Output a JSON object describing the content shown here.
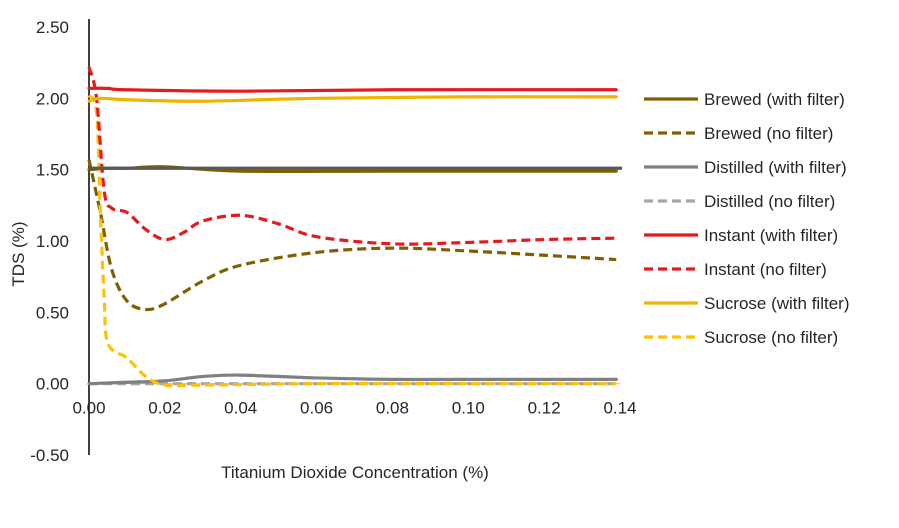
{
  "chart_data": {
    "type": "line",
    "title": "",
    "xlabel": "Titanium Dioxide Concentration (%)",
    "ylabel": "TDS (%)",
    "xlim": [
      0,
      0.14
    ],
    "ylim": [
      -0.5,
      2.5
    ],
    "x_ticks": [
      "0.00",
      "0.02",
      "0.04",
      "0.06",
      "0.08",
      "0.10",
      "0.12",
      "0.14"
    ],
    "y_ticks": [
      "-0.50",
      "0.00",
      "0.50",
      "1.00",
      "1.50",
      "2.00",
      "2.50"
    ],
    "grid": false,
    "legend_position": "right",
    "series": [
      {
        "name": "Brewed (with filter)",
        "color": "#7F6000",
        "dash": "solid",
        "points": [
          [
            0,
            1.5
          ],
          [
            0.005,
            1.51
          ],
          [
            0.01,
            1.51
          ],
          [
            0.02,
            1.52
          ],
          [
            0.04,
            1.49
          ],
          [
            0.08,
            1.49
          ],
          [
            0.139,
            1.49
          ]
        ]
      },
      {
        "name": "Brewed (no filter)",
        "color": "#7F6000",
        "dash": "dashed",
        "points": [
          [
            0,
            1.57
          ],
          [
            0.003,
            1.2
          ],
          [
            0.006,
            0.8
          ],
          [
            0.01,
            0.58
          ],
          [
            0.015,
            0.52
          ],
          [
            0.02,
            0.56
          ],
          [
            0.03,
            0.72
          ],
          [
            0.04,
            0.83
          ],
          [
            0.06,
            0.92
          ],
          [
            0.08,
            0.95
          ],
          [
            0.1,
            0.93
          ],
          [
            0.12,
            0.9
          ],
          [
            0.139,
            0.87
          ]
        ]
      },
      {
        "name": "Distilled (with filter)",
        "color": "#808080",
        "dash": "solid",
        "points": [
          [
            0,
            0.0
          ],
          [
            0.01,
            0.01
          ],
          [
            0.02,
            0.02
          ],
          [
            0.03,
            0.05
          ],
          [
            0.04,
            0.06
          ],
          [
            0.06,
            0.04
          ],
          [
            0.08,
            0.03
          ],
          [
            0.1,
            0.03
          ],
          [
            0.139,
            0.03
          ]
        ]
      },
      {
        "name": "Distilled (no filter)",
        "color": "#A6A6A6",
        "dash": "dashed",
        "points": [
          [
            0,
            0.0
          ],
          [
            0.02,
            0.0
          ],
          [
            0.04,
            0.0
          ],
          [
            0.06,
            0.0
          ],
          [
            0.08,
            0.0
          ],
          [
            0.1,
            0.0
          ],
          [
            0.139,
            0.0
          ]
        ]
      },
      {
        "name": "Instant (with filter)",
        "color": "#E41A1C",
        "dash": "solid",
        "points": [
          [
            0,
            2.07
          ],
          [
            0.005,
            2.07
          ],
          [
            0.01,
            2.06
          ],
          [
            0.04,
            2.05
          ],
          [
            0.08,
            2.06
          ],
          [
            0.139,
            2.06
          ]
        ]
      },
      {
        "name": "Instant (no filter)",
        "color": "#E41A1C",
        "dash": "dashed",
        "points": [
          [
            0,
            2.22
          ],
          [
            0.002,
            2.0
          ],
          [
            0.004,
            1.35
          ],
          [
            0.006,
            1.23
          ],
          [
            0.01,
            1.2
          ],
          [
            0.015,
            1.08
          ],
          [
            0.02,
            1.01
          ],
          [
            0.025,
            1.06
          ],
          [
            0.03,
            1.14
          ],
          [
            0.04,
            1.18
          ],
          [
            0.05,
            1.12
          ],
          [
            0.06,
            1.03
          ],
          [
            0.08,
            0.98
          ],
          [
            0.1,
            0.99
          ],
          [
            0.12,
            1.01
          ],
          [
            0.139,
            1.02
          ]
        ]
      },
      {
        "name": "Sucrose (with filter)",
        "color": "#F0B400",
        "dash": "solid",
        "points": [
          [
            0,
            1.98
          ],
          [
            0.003,
            2.0
          ],
          [
            0.01,
            1.99
          ],
          [
            0.03,
            1.98
          ],
          [
            0.06,
            2.0
          ],
          [
            0.1,
            2.01
          ],
          [
            0.139,
            2.01
          ]
        ]
      },
      {
        "name": "Sucrose (no filter)",
        "color": "#FFC000",
        "dash": "dashed",
        "points": [
          [
            0,
            2.02
          ],
          [
            0.002,
            1.9
          ],
          [
            0.003,
            1.2
          ],
          [
            0.004,
            0.6
          ],
          [
            0.005,
            0.28
          ],
          [
            0.01,
            0.18
          ],
          [
            0.015,
            0.05
          ],
          [
            0.02,
            -0.01
          ],
          [
            0.03,
            -0.01
          ],
          [
            0.06,
            0.0
          ],
          [
            0.1,
            0.0
          ],
          [
            0.139,
            0.0
          ]
        ]
      }
    ],
    "extra_lines": [
      {
        "color": "#595959",
        "points": [
          [
            0,
            1.51
          ],
          [
            0.14,
            1.51
          ]
        ]
      }
    ]
  }
}
